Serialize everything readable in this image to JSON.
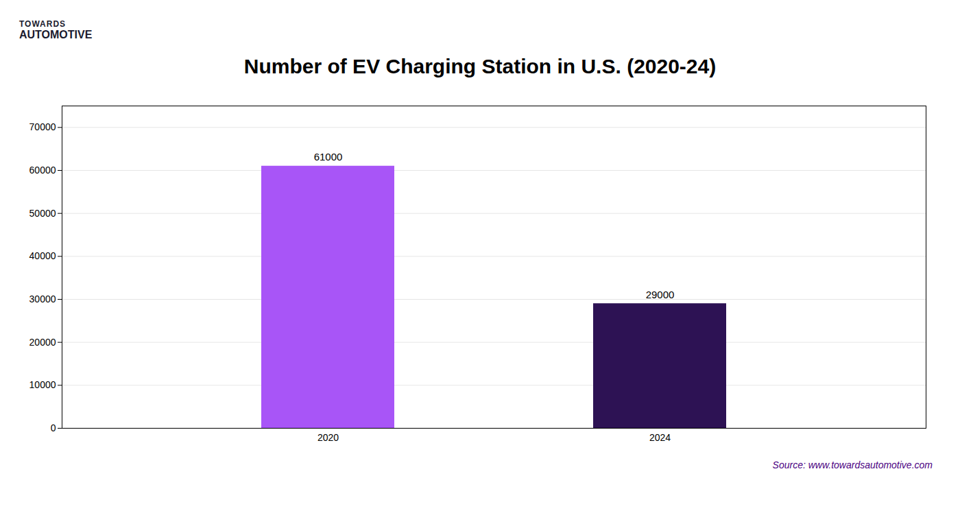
{
  "chart_data": {
    "type": "bar",
    "title": "Number of EV Charging Station in U.S. (2020-24)",
    "categories": [
      "2020",
      "2024"
    ],
    "values": [
      61000,
      29000
    ],
    "colors": [
      "#a855f7",
      "#2d1254"
    ],
    "ylim": [
      0,
      75000
    ],
    "yticks": [
      0,
      10000,
      20000,
      30000,
      40000,
      50000,
      60000,
      70000
    ],
    "grid": true,
    "data_labels": true,
    "annotations": [
      "TOWARDS",
      "AUTOMOTIVE",
      "Source: www.towardsautomotive.com"
    ]
  }
}
